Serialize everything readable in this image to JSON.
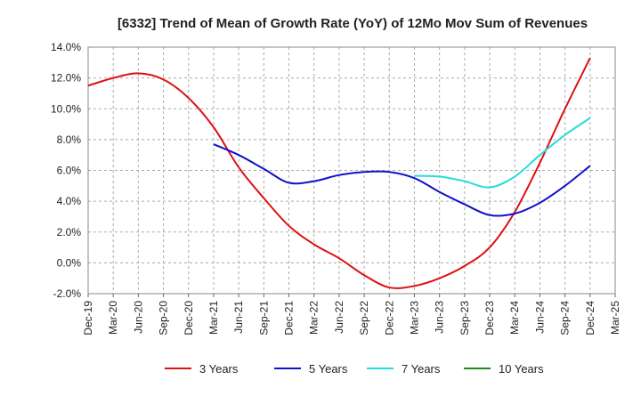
{
  "chart_data": {
    "type": "line",
    "title": "[6332]  Trend of Mean of Growth Rate (YoY) of 12Mo Mov Sum of Revenues",
    "xlabel": "",
    "ylabel": "",
    "y_ticks": [
      "14.0%",
      "12.0%",
      "10.0%",
      "8.0%",
      "6.0%",
      "4.0%",
      "2.0%",
      "0.0%",
      "-2.0%"
    ],
    "y_tick_values": [
      14,
      12,
      10,
      8,
      6,
      4,
      2,
      0,
      -2
    ],
    "ylim": [
      -2,
      14
    ],
    "x_ticks": [
      "Dec-19",
      "Mar-20",
      "Jun-20",
      "Sep-20",
      "Dec-20",
      "Mar-21",
      "Jun-21",
      "Sep-21",
      "Dec-21",
      "Mar-22",
      "Jun-22",
      "Sep-22",
      "Dec-22",
      "Mar-23",
      "Jun-23",
      "Sep-23",
      "Dec-23",
      "Mar-24",
      "Jun-24",
      "Sep-24",
      "Dec-24",
      "Mar-25"
    ],
    "grid": true,
    "legend_position": "bottom",
    "series": [
      {
        "name": "3 Years",
        "color": "#dd1111",
        "points": [
          [
            0,
            11.5
          ],
          [
            1,
            12.0
          ],
          [
            2,
            12.3
          ],
          [
            3,
            11.9
          ],
          [
            4,
            10.7
          ],
          [
            5,
            8.8
          ],
          [
            6,
            6.2
          ],
          [
            7,
            4.2
          ],
          [
            8,
            2.4
          ],
          [
            9,
            1.2
          ],
          [
            10,
            0.3
          ],
          [
            11,
            -0.8
          ],
          [
            12,
            -1.6
          ],
          [
            13,
            -1.5
          ],
          [
            14,
            -1.0
          ],
          [
            15,
            -0.2
          ],
          [
            16,
            1.0
          ],
          [
            17,
            3.3
          ],
          [
            18,
            6.5
          ],
          [
            19,
            10.0
          ],
          [
            20,
            13.3
          ]
        ]
      },
      {
        "name": "5 Years",
        "color": "#1111cc",
        "points": [
          [
            5,
            7.7
          ],
          [
            6,
            7.0
          ],
          [
            7,
            6.1
          ],
          [
            8,
            5.2
          ],
          [
            9,
            5.3
          ],
          [
            10,
            5.7
          ],
          [
            11,
            5.9
          ],
          [
            12,
            5.9
          ],
          [
            13,
            5.5
          ],
          [
            14,
            4.6
          ],
          [
            15,
            3.8
          ],
          [
            16,
            3.1
          ],
          [
            17,
            3.2
          ],
          [
            18,
            3.9
          ],
          [
            19,
            5.0
          ],
          [
            20,
            6.3
          ]
        ]
      },
      {
        "name": "7 Years",
        "color": "#22dddd",
        "points": [
          [
            13,
            5.65
          ],
          [
            14,
            5.6
          ],
          [
            15,
            5.3
          ],
          [
            16,
            4.9
          ],
          [
            17,
            5.6
          ],
          [
            18,
            7.0
          ],
          [
            19,
            8.3
          ],
          [
            20,
            9.4
          ]
        ]
      },
      {
        "name": "10 Years",
        "color": "#228822",
        "points": []
      }
    ]
  }
}
